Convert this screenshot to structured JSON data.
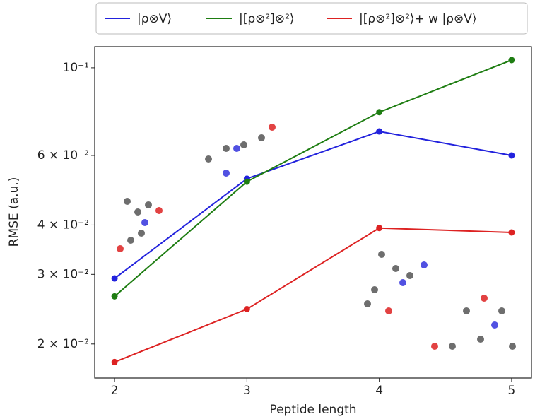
{
  "chart_data": {
    "type": "line",
    "x_label": "Peptide length",
    "y_label": "RMSE (a.u.)",
    "x": [
      2,
      3,
      4,
      5
    ],
    "series": [
      {
        "name": "|ρ⊗V⟩",
        "color": "#2222dd",
        "values": [
          0.0293,
          0.0524,
          0.069,
          0.06
        ]
      },
      {
        "name": "|[ρ⊗²]⊗²⟩",
        "color": "#1e7d12",
        "values": [
          0.0264,
          0.0515,
          0.0772,
          0.1046
        ]
      },
      {
        "name": "|[ρ⊗²]⊗²⟩+ w |ρ⊗V⟩",
        "color": "#dd2222",
        "values": [
          0.018,
          0.0245,
          0.0393,
          0.0383
        ]
      }
    ],
    "xlim": [
      1.85,
      5.15
    ],
    "xticks": [
      2,
      3,
      4,
      5
    ],
    "ylim": [
      0.0164,
      0.1131
    ],
    "log_y": true,
    "yticks": [
      {
        "value": 0.02,
        "label": "2 × 10⁻²"
      },
      {
        "value": 0.03,
        "label": "3 × 10⁻²"
      },
      {
        "value": 0.04,
        "label": "4 × 10⁻²"
      },
      {
        "value": 0.06,
        "label": "6 × 10⁻²"
      },
      {
        "value": 0.1,
        "label": "10⁻¹"
      }
    ],
    "legend": "upper center outside"
  }
}
